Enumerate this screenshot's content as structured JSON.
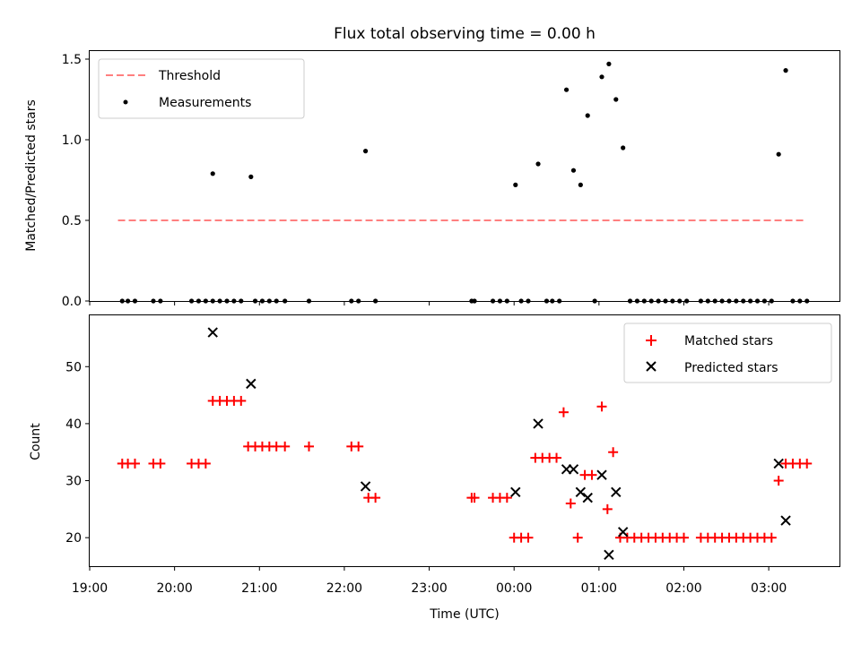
{
  "chart_data": [
    {
      "type": "scatter",
      "title": "Flux total observing time = 0.00 h",
      "xlabel": "",
      "ylabel": "Matched/Predicted stars",
      "xlim": [
        "19:00",
        "03:50"
      ],
      "ylim": [
        0,
        1.55
      ],
      "yticks": [
        0.0,
        0.5,
        1.0,
        1.5
      ],
      "ytick_labels": [
        "0.0",
        "0.5",
        "1.0",
        "1.5"
      ],
      "legend_position": "top-left",
      "threshold": {
        "name": "Threshold",
        "value": 0.5,
        "x_range": [
          "19:20",
          "03:25"
        ],
        "color": "#ff7f7f"
      },
      "series": [
        {
          "name": "Measurements",
          "color": "#000000",
          "points": [
            [
              "19:23",
              0
            ],
            [
              "19:27",
              0
            ],
            [
              "19:32",
              0
            ],
            [
              "19:45",
              0
            ],
            [
              "19:50",
              0
            ],
            [
              "20:12",
              0
            ],
            [
              "20:17",
              0
            ],
            [
              "20:22",
              0
            ],
            [
              "20:27",
              0
            ],
            [
              "20:32",
              0
            ],
            [
              "20:37",
              0
            ],
            [
              "20:42",
              0
            ],
            [
              "20:47",
              0
            ],
            [
              "20:57",
              0
            ],
            [
              "21:02",
              0
            ],
            [
              "21:07",
              0
            ],
            [
              "21:12",
              0
            ],
            [
              "21:18",
              0
            ],
            [
              "21:35",
              0
            ],
            [
              "22:05",
              0
            ],
            [
              "22:10",
              0
            ],
            [
              "22:22",
              0
            ],
            [
              "23:30",
              0
            ],
            [
              "23:32",
              0
            ],
            [
              "23:45",
              0
            ],
            [
              "23:50",
              0
            ],
            [
              "23:55",
              0
            ],
            [
              "00:05",
              0
            ],
            [
              "00:10",
              0
            ],
            [
              "00:23",
              0
            ],
            [
              "00:27",
              0
            ],
            [
              "00:32",
              0
            ],
            [
              "00:57",
              0
            ],
            [
              "01:22",
              0
            ],
            [
              "01:27",
              0
            ],
            [
              "01:32",
              0
            ],
            [
              "01:37",
              0
            ],
            [
              "01:42",
              0
            ],
            [
              "01:47",
              0
            ],
            [
              "01:52",
              0
            ],
            [
              "01:57",
              0
            ],
            [
              "02:02",
              0
            ],
            [
              "02:12",
              0
            ],
            [
              "02:17",
              0
            ],
            [
              "02:22",
              0
            ],
            [
              "02:27",
              0
            ],
            [
              "02:32",
              0
            ],
            [
              "02:37",
              0
            ],
            [
              "02:42",
              0
            ],
            [
              "02:47",
              0
            ],
            [
              "02:52",
              0
            ],
            [
              "02:57",
              0
            ],
            [
              "03:02",
              0
            ],
            [
              "03:17",
              0
            ],
            [
              "03:22",
              0
            ],
            [
              "03:27",
              0
            ],
            [
              "20:27",
              0.79
            ],
            [
              "20:54",
              0.77
            ],
            [
              "22:15",
              0.93
            ],
            [
              "00:01",
              0.72
            ],
            [
              "00:17",
              0.85
            ],
            [
              "00:37",
              1.31
            ],
            [
              "00:42",
              0.81
            ],
            [
              "00:47",
              0.72
            ],
            [
              "00:52",
              1.15
            ],
            [
              "01:02",
              1.39
            ],
            [
              "01:07",
              1.47
            ],
            [
              "01:12",
              1.25
            ],
            [
              "01:17",
              0.95
            ],
            [
              "03:07",
              0.91
            ],
            [
              "03:12",
              1.43
            ]
          ]
        }
      ]
    },
    {
      "type": "scatter",
      "title": "",
      "xlabel": "Time (UTC)",
      "ylabel": "Count",
      "xlim": [
        "19:00",
        "03:50"
      ],
      "ylim": [
        15,
        59
      ],
      "xticks": [
        "19:00",
        "20:00",
        "21:00",
        "22:00",
        "23:00",
        "00:00",
        "01:00",
        "02:00",
        "03:00"
      ],
      "yticks": [
        20,
        30,
        40,
        50
      ],
      "ytick_labels": [
        "20",
        "30",
        "40",
        "50"
      ],
      "legend_position": "top-right",
      "series": [
        {
          "name": "Matched stars",
          "marker": "plus",
          "color": "#ff0000",
          "points": [
            [
              "19:23",
              33
            ],
            [
              "19:27",
              33
            ],
            [
              "19:32",
              33
            ],
            [
              "19:45",
              33
            ],
            [
              "19:50",
              33
            ],
            [
              "20:12",
              33
            ],
            [
              "20:17",
              33
            ],
            [
              "20:22",
              33
            ],
            [
              "20:27",
              44
            ],
            [
              "20:32",
              44
            ],
            [
              "20:37",
              44
            ],
            [
              "20:42",
              44
            ],
            [
              "20:47",
              44
            ],
            [
              "20:52",
              36
            ],
            [
              "20:57",
              36
            ],
            [
              "21:02",
              36
            ],
            [
              "21:07",
              36
            ],
            [
              "21:12",
              36
            ],
            [
              "21:18",
              36
            ],
            [
              "21:35",
              36
            ],
            [
              "22:05",
              36
            ],
            [
              "22:10",
              36
            ],
            [
              "22:17",
              27
            ],
            [
              "22:22",
              27
            ],
            [
              "23:30",
              27
            ],
            [
              "23:32",
              27
            ],
            [
              "23:45",
              27
            ],
            [
              "23:50",
              27
            ],
            [
              "23:55",
              27
            ],
            [
              "00:00",
              20
            ],
            [
              "00:05",
              20
            ],
            [
              "00:10",
              20
            ],
            [
              "00:15",
              34
            ],
            [
              "00:20",
              34
            ],
            [
              "00:25",
              34
            ],
            [
              "00:30",
              34
            ],
            [
              "00:35",
              42
            ],
            [
              "00:40",
              26
            ],
            [
              "00:45",
              20
            ],
            [
              "00:50",
              31
            ],
            [
              "00:55",
              31
            ],
            [
              "01:02",
              43
            ],
            [
              "01:06",
              25
            ],
            [
              "01:10",
              35
            ],
            [
              "01:15",
              20
            ],
            [
              "01:20",
              20
            ],
            [
              "01:25",
              20
            ],
            [
              "01:30",
              20
            ],
            [
              "01:35",
              20
            ],
            [
              "01:40",
              20
            ],
            [
              "01:45",
              20
            ],
            [
              "01:50",
              20
            ],
            [
              "01:55",
              20
            ],
            [
              "02:00",
              20
            ],
            [
              "02:12",
              20
            ],
            [
              "02:17",
              20
            ],
            [
              "02:22",
              20
            ],
            [
              "02:27",
              20
            ],
            [
              "02:32",
              20
            ],
            [
              "02:37",
              20
            ],
            [
              "02:42",
              20
            ],
            [
              "02:47",
              20
            ],
            [
              "02:52",
              20
            ],
            [
              "02:57",
              20
            ],
            [
              "03:02",
              20
            ],
            [
              "03:07",
              30
            ],
            [
              "03:12",
              33
            ],
            [
              "03:17",
              33
            ],
            [
              "03:22",
              33
            ],
            [
              "03:27",
              33
            ]
          ]
        },
        {
          "name": "Predicted stars",
          "marker": "x",
          "color": "#000000",
          "points": [
            [
              "20:27",
              56
            ],
            [
              "20:54",
              47
            ],
            [
              "22:15",
              29
            ],
            [
              "00:01",
              28
            ],
            [
              "00:17",
              40
            ],
            [
              "00:37",
              32
            ],
            [
              "00:42",
              32
            ],
            [
              "00:47",
              28
            ],
            [
              "00:52",
              27
            ],
            [
              "01:02",
              31
            ],
            [
              "01:07",
              17
            ],
            [
              "01:12",
              28
            ],
            [
              "01:17",
              21
            ],
            [
              "03:07",
              33
            ],
            [
              "03:12",
              23
            ]
          ]
        }
      ]
    }
  ]
}
